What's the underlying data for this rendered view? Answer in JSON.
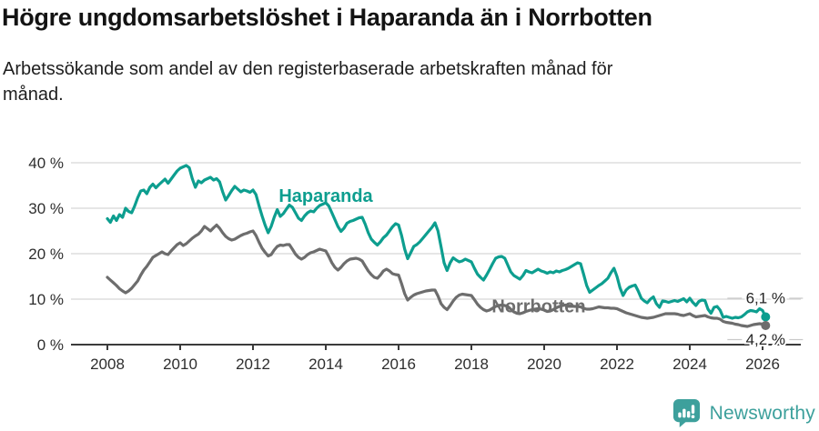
{
  "header": {
    "title": "Högre ungdomsarbetslöshet i Haparanda än i Norrbotten",
    "subtitle_line1": "Arbetssökande som andel av den registerbaserade arbetskraften månad för",
    "subtitle_line2": "månad."
  },
  "footer": {
    "brand": "Newsworthy",
    "logo_icon": "speech-bubble-bar-chart-icon"
  },
  "colors": {
    "haparanda": "#0d9e8f",
    "norrbotten": "#6d6d6d",
    "gridline": "#d8d8d8",
    "axis": "#3b3b3b",
    "tick_text": "#2e2e2e",
    "end_label_text": "#262626",
    "leader_line": "#c8c8c8",
    "brand": "#3da09c"
  },
  "chart_data": {
    "type": "line",
    "title": "Högre ungdomsarbetslöshet i Haparanda än i Norrbotten",
    "subtitle": "Arbetssökande som andel av den registerbaserade arbetskraften månad för månad.",
    "xlabel": "",
    "ylabel": "",
    "x_interval": "monthly",
    "x_start_year": 2008,
    "x_tick_years": [
      2008,
      2010,
      2012,
      2014,
      2016,
      2018,
      2020,
      2022,
      2024,
      2026
    ],
    "ylim": [
      0,
      40
    ],
    "y_ticks": [
      0,
      10,
      20,
      30,
      40
    ],
    "y_tick_suffix": " %",
    "grid": "horizontal",
    "legend": "inline-labels",
    "series": [
      {
        "name": "Haparanda",
        "color_key": "haparanda",
        "end_label": "6,1 %",
        "end_label_side": "above",
        "label_anchor": {
          "year": 2014.0,
          "value": 32.8
        },
        "values": [
          27.7,
          26.9,
          28.3,
          27.3,
          28.6,
          28.0,
          30.0,
          29.3,
          29.0,
          30.5,
          32.3,
          33.8,
          34.0,
          33.2,
          34.6,
          35.3,
          34.5,
          35.2,
          35.8,
          36.4,
          35.5,
          36.4,
          37.3,
          38.2,
          38.8,
          39.1,
          39.4,
          38.9,
          36.5,
          34.6,
          36.0,
          35.6,
          36.2,
          36.5,
          36.8,
          36.2,
          36.5,
          35.8,
          33.6,
          31.8,
          32.8,
          33.9,
          34.8,
          34.2,
          33.6,
          34.0,
          33.8,
          33.5,
          34.0,
          33.0,
          30.5,
          28.3,
          26.3,
          24.6,
          26.0,
          28.0,
          29.7,
          28.2,
          28.8,
          29.8,
          30.7,
          30.2,
          29.0,
          27.8,
          27.3,
          28.3,
          29.0,
          29.4,
          29.2,
          30.0,
          30.6,
          30.9,
          31.2,
          30.5,
          29.0,
          27.5,
          26.0,
          24.9,
          25.6,
          26.7,
          27.1,
          27.3,
          27.6,
          27.9,
          28.0,
          26.5,
          24.6,
          23.2,
          22.5,
          21.9,
          22.6,
          23.5,
          24.1,
          25.0,
          25.9,
          26.6,
          26.3,
          24.0,
          21.0,
          18.9,
          20.2,
          21.6,
          22.0,
          22.6,
          23.4,
          24.2,
          25.0,
          25.8,
          26.8,
          25.0,
          21.5,
          18.0,
          16.3,
          18.0,
          19.1,
          18.6,
          18.2,
          18.4,
          18.8,
          18.5,
          18.2,
          16.8,
          15.5,
          14.8,
          14.2,
          15.3,
          16.5,
          17.8,
          19.0,
          19.3,
          19.4,
          19.0,
          17.5,
          16.0,
          15.2,
          14.8,
          14.4,
          15.2,
          16.3,
          16.0,
          15.8,
          16.2,
          16.6,
          16.2,
          16.0,
          15.7,
          16.0,
          15.8,
          16.2,
          16.0,
          16.3,
          16.5,
          16.8,
          17.2,
          17.6,
          18.0,
          17.8,
          15.5,
          13.0,
          11.5,
          12.0,
          12.5,
          13.0,
          13.4,
          14.0,
          14.6,
          15.8,
          16.8,
          15.0,
          12.5,
          10.8,
          12.0,
          12.6,
          12.9,
          13.1,
          11.8,
          10.2,
          9.6,
          9.2,
          10.0,
          10.5,
          9.0,
          8.2,
          9.6,
          9.5,
          9.3,
          9.5,
          9.7,
          9.5,
          9.8,
          10.1,
          9.4,
          10.2,
          9.3,
          8.6,
          9.5,
          9.8,
          9.7,
          7.8,
          6.9,
          8.2,
          8.4,
          7.6,
          6.0,
          6.2,
          6.0,
          5.8,
          6.0,
          5.9,
          6.1,
          6.6,
          7.2,
          7.5,
          7.4,
          7.2,
          7.9,
          7.5,
          6.1
        ]
      },
      {
        "name": "Norrbotten",
        "color_key": "norrbotten",
        "end_label": "4,2 %",
        "end_label_side": "below",
        "label_anchor": {
          "year": 2019.85,
          "value": 8.5
        },
        "values": [
          14.8,
          14.2,
          13.6,
          13.0,
          12.3,
          11.8,
          11.4,
          11.8,
          12.4,
          13.2,
          14.0,
          15.3,
          16.4,
          17.2,
          18.2,
          19.2,
          19.6,
          20.0,
          20.4,
          20.0,
          19.8,
          20.6,
          21.3,
          22.0,
          22.4,
          21.8,
          22.2,
          22.8,
          23.4,
          23.9,
          24.3,
          25.0,
          26.0,
          25.5,
          25.0,
          25.7,
          26.3,
          25.6,
          24.6,
          23.8,
          23.3,
          23.0,
          23.2,
          23.6,
          24.0,
          24.3,
          24.5,
          24.8,
          25.0,
          24.0,
          22.5,
          21.2,
          20.3,
          19.5,
          19.8,
          20.8,
          21.6,
          21.9,
          21.8,
          22.0,
          22.0,
          21.0,
          19.9,
          19.2,
          18.8,
          19.2,
          19.8,
          20.2,
          20.4,
          20.7,
          21.0,
          20.8,
          20.6,
          19.4,
          18.0,
          17.0,
          16.4,
          17.0,
          17.8,
          18.4,
          18.8,
          18.9,
          19.0,
          18.8,
          18.4,
          17.3,
          16.2,
          15.4,
          14.8,
          14.6,
          15.3,
          16.2,
          16.6,
          16.2,
          15.6,
          15.4,
          15.3,
          13.4,
          11.2,
          9.8,
          10.4,
          10.9,
          11.2,
          11.4,
          11.6,
          11.8,
          11.9,
          12.0,
          12.0,
          10.7,
          9.0,
          8.2,
          7.7,
          8.6,
          9.6,
          10.4,
          10.9,
          11.1,
          11.0,
          10.9,
          10.8,
          9.9,
          8.9,
          8.2,
          7.7,
          7.4,
          7.6,
          8.0,
          8.4,
          8.6,
          8.7,
          8.6,
          8.4,
          7.8,
          7.2,
          6.9,
          6.8,
          7.0,
          7.3,
          7.5,
          7.7,
          7.8,
          7.9,
          7.8,
          7.6,
          7.3,
          7.4,
          7.7,
          8.1,
          8.4,
          8.6,
          8.7,
          8.6,
          8.5,
          8.4,
          8.4,
          8.3,
          8.0,
          7.8,
          7.8,
          7.9,
          8.1,
          8.3,
          8.2,
          8.1,
          8.1,
          8.0,
          8.0,
          7.9,
          7.6,
          7.3,
          7.0,
          6.8,
          6.6,
          6.4,
          6.2,
          6.0,
          5.9,
          5.8,
          5.9,
          6.0,
          6.2,
          6.4,
          6.6,
          6.8,
          6.8,
          6.8,
          6.8,
          6.7,
          6.5,
          6.4,
          6.6,
          6.8,
          6.4,
          6.1,
          6.2,
          6.3,
          6.4,
          6.1,
          5.9,
          5.8,
          5.8,
          5.6,
          5.1,
          4.9,
          4.8,
          4.7,
          4.5,
          4.4,
          4.2,
          4.1,
          4.0,
          4.2,
          4.4,
          4.5,
          4.6,
          4.5,
          4.2
        ]
      }
    ]
  }
}
